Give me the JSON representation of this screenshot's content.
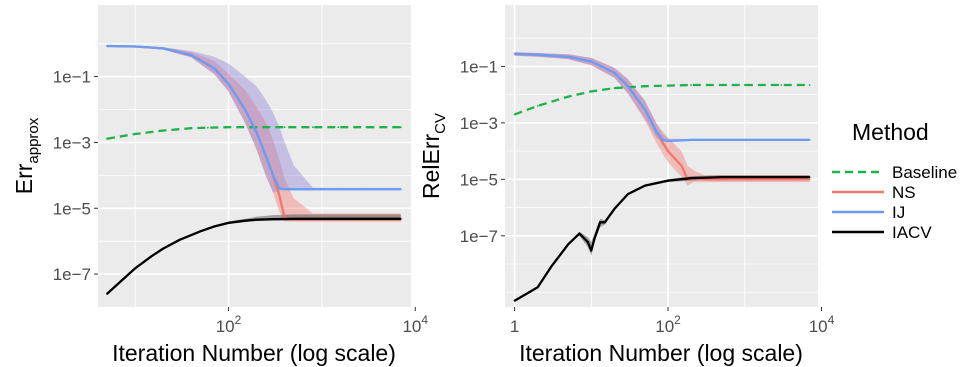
{
  "legend": {
    "title": "Method",
    "items": [
      {
        "label": "Baseline",
        "color": "#1fb24a",
        "style": "dashed"
      },
      {
        "label": "NS",
        "color": "#f2766b",
        "style": "solid"
      },
      {
        "label": "IJ",
        "color": "#6a9cf5",
        "style": "solid"
      },
      {
        "label": "IACV",
        "color": "#000000",
        "style": "solid"
      }
    ]
  },
  "chart_data": [
    {
      "type": "line",
      "xlabel": "Iteration Number (log scale)",
      "ylabel": "Err",
      "ylabel_sub": "approx",
      "x_scale": "log10",
      "y_scale": "log10",
      "xlim": [
        4,
        9000
      ],
      "ylim": [
        1e-08,
        15
      ],
      "xticks": [
        {
          "value": 100,
          "base": "10",
          "exp": "2"
        },
        {
          "value": 10000,
          "base": "10",
          "exp": "4"
        }
      ],
      "yticks": [
        {
          "value": 0.1,
          "label": "1e−1"
        },
        {
          "value": 0.001,
          "label": "1e−3"
        },
        {
          "value": 1e-05,
          "label": "1e−5"
        },
        {
          "value": 1e-07,
          "label": "1e−7"
        }
      ],
      "grid": true,
      "series": [
        {
          "name": "Baseline",
          "x": [
            5,
            10,
            20,
            40,
            60,
            100,
            200,
            400,
            800,
            1500,
            3000,
            7000
          ],
          "y": [
            0.0013,
            0.0018,
            0.0023,
            0.0027,
            0.0028,
            0.0029,
            0.0029,
            0.0029,
            0.0029,
            0.0029,
            0.0029,
            0.0029
          ]
        },
        {
          "name": "NS",
          "x": [
            5,
            10,
            20,
            40,
            70,
            100,
            150,
            200,
            250,
            300,
            350,
            400,
            500,
            800,
            1500,
            3000,
            7000
          ],
          "y": [
            0.85,
            0.82,
            0.72,
            0.45,
            0.18,
            0.06,
            0.01,
            0.002,
            0.0004,
            0.0001,
            2.5e-05,
            5e-06,
            4.6e-06,
            4.6e-06,
            4.6e-06,
            4.6e-06,
            4.6e-06
          ],
          "lower": [
            0.8,
            0.77,
            0.66,
            0.38,
            0.12,
            0.035,
            0.004,
            0.0006,
            0.0001,
            3e-05,
            8e-06,
            4e-06,
            3.9e-06,
            3.9e-06,
            3.9e-06,
            3.9e-06,
            3.9e-06
          ],
          "upper": [
            0.9,
            0.87,
            0.78,
            0.55,
            0.3,
            0.12,
            0.04,
            0.012,
            0.004,
            0.0012,
            0.0003,
            8e-05,
            2e-05,
            7e-06,
            7e-06,
            7e-06,
            7e-06
          ]
        },
        {
          "name": "IJ",
          "x": [
            5,
            10,
            20,
            40,
            70,
            100,
            150,
            200,
            250,
            300,
            350,
            400,
            500,
            800,
            1500,
            3000,
            7000
          ],
          "y": [
            0.85,
            0.82,
            0.72,
            0.45,
            0.18,
            0.06,
            0.01,
            0.002,
            0.0004,
            0.0001,
            4e-05,
            3.8e-05,
            3.8e-05,
            3.8e-05,
            3.8e-05,
            3.8e-05,
            3.8e-05
          ],
          "lower": [
            0.8,
            0.77,
            0.66,
            0.38,
            0.12,
            0.035,
            0.004,
            0.0006,
            0.0001,
            3e-05,
            3.5e-05,
            3.5e-05,
            3.5e-05,
            3.5e-05,
            3.5e-05,
            3.5e-05,
            3.5e-05
          ],
          "upper": [
            0.9,
            0.87,
            0.78,
            0.6,
            0.4,
            0.25,
            0.1,
            0.05,
            0.02,
            0.008,
            0.003,
            0.001,
            0.0002,
            4.2e-05,
            4.2e-05,
            4.2e-05,
            4.2e-05
          ]
        },
        {
          "name": "IACV",
          "x": [
            5,
            7,
            10,
            15,
            20,
            30,
            50,
            70,
            100,
            150,
            200,
            300,
            500,
            1000,
            2000,
            7000
          ],
          "y": [
            2.5e-08,
            6e-08,
            1.5e-07,
            3.5e-07,
            6e-07,
            1.1e-06,
            2e-06,
            2.8e-06,
            3.6e-06,
            4.2e-06,
            4.5e-06,
            4.7e-06,
            4.8e-06,
            4.8e-06,
            4.8e-06,
            4.8e-06
          ],
          "lower": [
            2.5e-08,
            6e-08,
            1.5e-07,
            3.5e-07,
            6e-07,
            1.1e-06,
            1.9e-06,
            2.6e-06,
            3.3e-06,
            3.8e-06,
            4.1e-06,
            4.2e-06,
            4.2e-06,
            4.2e-06,
            4.2e-06,
            4.2e-06
          ],
          "upper": [
            2.5e-08,
            6e-08,
            1.5e-07,
            3.5e-07,
            6.2e-07,
            1.2e-06,
            2.1e-06,
            3e-06,
            4e-06,
            4.8e-06,
            5.5e-06,
            6.2e-06,
            6.5e-06,
            6.5e-06,
            6.5e-06,
            6.5e-06
          ]
        }
      ]
    },
    {
      "type": "line",
      "xlabel": "Iteration Number (log scale)",
      "ylabel": "RelErr",
      "ylabel_sub": "CV",
      "x_scale": "log10",
      "y_scale": "log10",
      "xlim": [
        0.75,
        9000
      ],
      "ylim": [
        3e-10,
        15
      ],
      "xticks": [
        {
          "value": 1,
          "base": "1",
          "exp": ""
        },
        {
          "value": 100,
          "base": "10",
          "exp": "2"
        },
        {
          "value": 10000,
          "base": "10",
          "exp": "4"
        }
      ],
      "yticks": [
        {
          "value": 0.1,
          "label": "1e−1"
        },
        {
          "value": 0.001,
          "label": "1e−3"
        },
        {
          "value": 1e-05,
          "label": "1e−5"
        },
        {
          "value": 1e-07,
          "label": "1e−7"
        }
      ],
      "grid": true,
      "series": [
        {
          "name": "Baseline",
          "x": [
            1,
            2,
            5,
            10,
            20,
            50,
            100,
            200,
            500,
            1000,
            3000,
            7000
          ],
          "y": [
            0.002,
            0.004,
            0.0085,
            0.013,
            0.017,
            0.02,
            0.021,
            0.022,
            0.022,
            0.022,
            0.022,
            0.022
          ]
        },
        {
          "name": "NS",
          "x": [
            1,
            2,
            5,
            10,
            20,
            30,
            50,
            70,
            85,
            100,
            150,
            180,
            220,
            300,
            500,
            1000,
            7000
          ],
          "y": [
            0.28,
            0.26,
            0.22,
            0.15,
            0.06,
            0.02,
            0.003,
            0.0005,
            0.0002,
            0.0001,
            3e-05,
            1e-05,
            1.1e-05,
            1e-05,
            1e-05,
            1e-05,
            1e-05
          ],
          "lower": [
            0.24,
            0.22,
            0.18,
            0.11,
            0.04,
            0.011,
            0.0012,
            0.0002,
            8e-05,
            4e-05,
            1.2e-05,
            6e-06,
            8e-06,
            8e-06,
            8e-06,
            8e-06,
            8e-06
          ],
          "upper": [
            0.32,
            0.3,
            0.27,
            0.2,
            0.09,
            0.035,
            0.006,
            0.001,
            0.0005,
            0.0003,
            0.0001,
            3e-05,
            2e-05,
            1.4e-05,
            1.4e-05,
            1.4e-05,
            1.4e-05
          ]
        },
        {
          "name": "IJ",
          "x": [
            1,
            2,
            5,
            10,
            20,
            30,
            50,
            70,
            85,
            100,
            150,
            200,
            300,
            500,
            1000,
            7000
          ],
          "y": [
            0.28,
            0.26,
            0.22,
            0.15,
            0.06,
            0.02,
            0.003,
            0.0005,
            0.00025,
            0.00023,
            0.00024,
            0.00025,
            0.00025,
            0.00025,
            0.00025,
            0.00025
          ],
          "lower": [
            0.24,
            0.22,
            0.18,
            0.11,
            0.04,
            0.011,
            0.0014,
            0.0003,
            0.00022,
            0.00021,
            0.00022,
            0.00023,
            0.00023,
            0.00023,
            0.00023,
            0.00023
          ],
          "upper": [
            0.32,
            0.3,
            0.27,
            0.2,
            0.09,
            0.035,
            0.006,
            0.001,
            0.0004,
            0.00028,
            0.00027,
            0.00027,
            0.00027,
            0.00027,
            0.00027,
            0.00027
          ]
        },
        {
          "name": "IACV",
          "x": [
            1,
            2,
            3,
            5,
            7,
            9,
            10,
            11,
            13,
            15,
            20,
            30,
            50,
            100,
            200,
            500,
            1000,
            7000
          ],
          "y": [
            5e-10,
            1.5e-09,
            8e-09,
            5e-08,
            1.2e-07,
            6e-08,
            3e-08,
            8e-08,
            3e-07,
            3e-07,
            9e-07,
            3e-06,
            6e-06,
            9e-06,
            1.1e-05,
            1.2e-05,
            1.2e-05,
            1.2e-05
          ],
          "lower": [
            5e-10,
            1.5e-09,
            8e-09,
            5e-08,
            1e-07,
            4e-08,
            2e-08,
            6e-08,
            2e-07,
            2.5e-07,
            8e-07,
            2.7e-06,
            5.5e-06,
            8e-06,
            9e-06,
            1e-05,
            1e-05,
            1e-05
          ],
          "upper": [
            5e-10,
            1.5e-09,
            8e-09,
            5e-08,
            1.4e-07,
            9e-08,
            6e-08,
            1.2e-07,
            4e-07,
            3.5e-07,
            1e-06,
            3.3e-06,
            6.5e-06,
            1e-05,
            1.3e-05,
            1.4e-05,
            1.4e-05,
            1.4e-05
          ]
        }
      ]
    }
  ]
}
